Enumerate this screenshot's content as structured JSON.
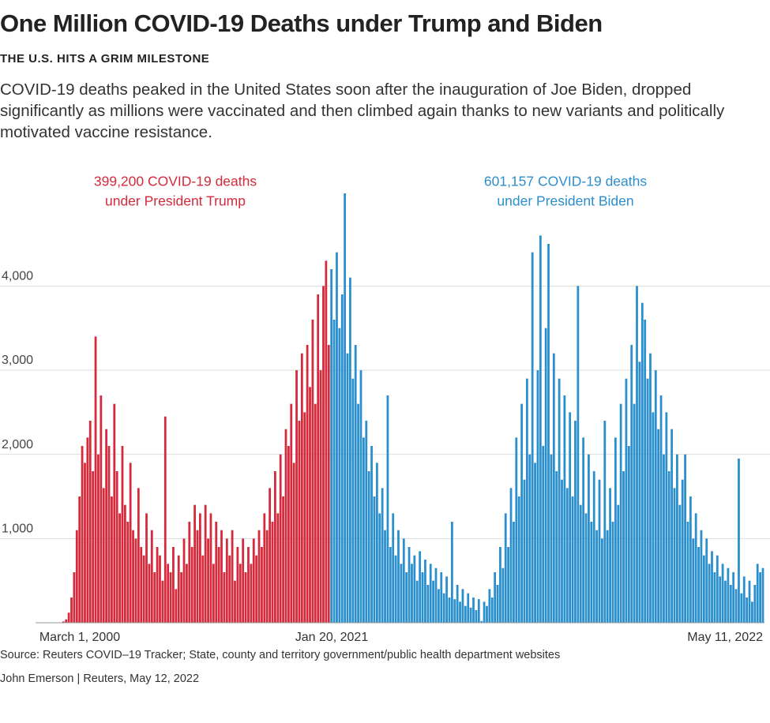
{
  "chart_data": {
    "type": "bar",
    "title": "One Million COVID-19 Deaths under Trump and Biden",
    "subtitle": "THE U.S. HITS A GRIM MILESTONE",
    "description": "COVID-19 deaths peaked in the United States soon after the inauguration of Joe Biden, dropped significantly as millions were vaccinated and then climbed again thanks to new variants and politically motivated vaccine resistance.",
    "annotations": [
      {
        "lines": [
          "399,200 COVID-19 deaths",
          "under President Trump"
        ],
        "color": "#d42a3c"
      },
      {
        "lines": [
          "601,157 COVID-19 deaths",
          "under President Biden"
        ],
        "color": "#2a8fcc"
      }
    ],
    "source": "Source: Reuters COVID–19 Tracker; State, county and territory government/public health department websites",
    "byline": "John Emerson  |  Reuters, May 12, 2022",
    "ylim": [
      0,
      5400
    ],
    "yticks": [
      {
        "value": 1000,
        "label": "1,000"
      },
      {
        "value": 2000,
        "label": "2,000"
      },
      {
        "value": 3000,
        "label": "3,000"
      },
      {
        "value": 4000,
        "label": "4,000"
      }
    ],
    "grid": true,
    "categories": [
      null,
      null,
      null,
      null,
      null,
      null,
      null,
      null,
      null,
      null,
      null,
      null,
      null,
      null,
      null,
      null,
      "March 1, 2000",
      null,
      null,
      null,
      null,
      null,
      null,
      null,
      null,
      null,
      null,
      null,
      null,
      null,
      null,
      null,
      null,
      null,
      null,
      null,
      null,
      null,
      null,
      null,
      null,
      null,
      null,
      null,
      null,
      null,
      null,
      null,
      null,
      null,
      null,
      null,
      null,
      null,
      null,
      null,
      null,
      null,
      null,
      null,
      null,
      null,
      null,
      null,
      null,
      null,
      null,
      null,
      null,
      null,
      null,
      null,
      null,
      null,
      null,
      null,
      null,
      null,
      null,
      null,
      null,
      null,
      null,
      null,
      null,
      null,
      null,
      null,
      null,
      null,
      null,
      null,
      null,
      null,
      null,
      null,
      null,
      null,
      null,
      null,
      null,
      null,
      null,
      null,
      null,
      null,
      null,
      null,
      null,
      null,
      "Jan 20, 2021",
      null,
      null,
      null,
      null,
      null,
      null,
      null,
      null,
      null,
      null,
      null,
      null,
      null,
      null,
      null,
      null,
      null,
      null,
      null,
      null,
      null,
      null,
      null,
      null,
      null,
      null,
      null,
      null,
      null,
      null,
      null,
      null,
      null,
      null,
      null,
      null,
      null,
      null,
      null,
      null,
      null,
      null,
      null,
      null,
      null,
      null,
      null,
      null,
      null,
      null,
      null,
      null,
      null,
      null,
      null,
      null,
      null,
      null,
      null,
      null,
      null,
      null,
      null,
      null,
      null,
      null,
      null,
      null,
      null,
      null,
      null,
      null,
      null,
      null,
      null,
      null,
      null,
      null,
      null,
      null,
      null,
      null,
      null,
      null,
      null,
      null,
      null,
      null,
      null,
      null,
      null,
      null,
      null,
      null,
      null,
      null,
      null,
      null,
      null,
      null,
      null,
      null,
      null,
      null,
      null,
      null,
      null,
      null,
      null,
      null,
      null,
      null,
      null,
      null,
      null,
      null,
      null,
      null,
      null,
      null,
      null,
      null,
      null,
      null,
      null,
      null,
      null,
      null,
      null,
      null,
      null,
      null,
      null,
      null,
      null,
      null,
      null,
      null,
      null,
      null,
      null,
      null,
      null,
      null,
      null,
      null,
      null,
      null,
      null,
      null,
      null,
      null,
      null,
      null,
      null,
      null,
      null,
      null,
      null,
      null,
      "May 11, 2022"
    ],
    "series": [
      {
        "color": "#d42a3c",
        "values": [
          0,
          0,
          0,
          0,
          0,
          0,
          0,
          0,
          2,
          5,
          15,
          40,
          120,
          300,
          600,
          1100,
          1500,
          2100,
          1900,
          2200,
          2400,
          1800,
          3400,
          2000,
          2700,
          1600,
          2300,
          2100,
          1500,
          2600,
          1800,
          1300,
          2100,
          1400,
          1200,
          1900,
          1100,
          1000,
          1600,
          900,
          800,
          1300,
          700,
          1100,
          600,
          900,
          800,
          500,
          2450,
          700,
          600,
          900,
          400,
          800,
          600,
          1000,
          700,
          1200,
          900,
          1400,
          1100,
          1300,
          800,
          1400,
          1000,
          1300,
          700,
          1200,
          900,
          1100,
          600,
          1000,
          800,
          1100,
          500,
          900,
          700,
          1000,
          600,
          900,
          700,
          1000,
          800,
          1100,
          900,
          1300,
          1100,
          1600,
          1200,
          1800,
          1300,
          2000,
          1500,
          2300,
          2100,
          2600,
          1900,
          3000,
          2400,
          3200,
          2500,
          3300,
          2800,
          3600,
          2600,
          3900,
          3000,
          4000,
          4300,
          3300,
          null,
          null,
          null,
          null,
          null,
          null,
          null,
          null,
          null,
          null,
          null,
          null,
          null,
          null,
          null,
          null,
          null,
          null,
          null,
          null,
          null,
          null,
          null,
          null,
          null,
          null,
          null,
          null,
          null,
          null,
          null,
          null,
          null,
          null,
          null,
          null,
          null,
          null,
          null,
          null,
          null,
          null,
          null,
          null,
          null,
          null,
          null,
          null,
          null,
          null,
          null,
          null,
          null,
          null,
          null,
          null,
          null,
          null,
          null,
          null,
          null,
          null,
          null,
          null,
          null,
          null,
          null,
          null,
          null,
          null,
          null,
          null,
          null,
          null,
          null,
          null,
          null,
          null,
          null,
          null,
          null,
          null,
          null,
          null,
          null,
          null,
          null,
          null,
          null,
          null,
          null,
          null,
          null,
          null,
          null,
          null,
          null,
          null,
          null,
          null,
          null,
          null,
          null,
          null,
          null,
          null,
          null,
          null,
          null,
          null,
          null,
          null,
          null,
          null,
          null,
          null,
          null,
          null,
          null,
          null,
          null,
          null,
          null,
          null,
          null,
          null,
          null,
          null,
          null,
          null,
          null,
          null,
          null,
          null,
          null,
          null,
          null,
          null,
          null,
          null,
          null,
          null,
          null,
          null,
          null,
          null,
          null,
          null,
          null,
          null,
          null,
          null,
          null,
          null,
          null,
          null,
          null,
          null,
          null,
          null,
          null,
          null
        ]
      },
      {
        "color": "#2a8fcc",
        "values": [
          null,
          null,
          null,
          null,
          null,
          null,
          null,
          null,
          null,
          null,
          null,
          null,
          null,
          null,
          null,
          null,
          null,
          null,
          null,
          null,
          null,
          null,
          null,
          null,
          null,
          null,
          null,
          null,
          null,
          null,
          null,
          null,
          null,
          null,
          null,
          null,
          null,
          null,
          null,
          null,
          null,
          null,
          null,
          null,
          null,
          null,
          null,
          null,
          null,
          null,
          null,
          null,
          null,
          null,
          null,
          null,
          null,
          null,
          null,
          null,
          null,
          null,
          null,
          null,
          null,
          null,
          null,
          null,
          null,
          null,
          null,
          null,
          null,
          null,
          null,
          null,
          null,
          null,
          null,
          null,
          null,
          null,
          null,
          null,
          null,
          null,
          null,
          null,
          null,
          null,
          null,
          null,
          null,
          null,
          null,
          null,
          null,
          null,
          null,
          null,
          null,
          null,
          null,
          null,
          null,
          null,
          null,
          null,
          null,
          null,
          4200,
          3600,
          4400,
          3500,
          3900,
          5100,
          3200,
          4100,
          2900,
          3300,
          2600,
          3000,
          2200,
          2400,
          1800,
          2100,
          1500,
          1900,
          1300,
          1600,
          1100,
          2700,
          900,
          1300,
          800,
          1100,
          700,
          1000,
          600,
          900,
          700,
          800,
          500,
          850,
          600,
          750,
          450,
          700,
          500,
          650,
          400,
          600,
          350,
          550,
          300,
          1200,
          280,
          450,
          250,
          400,
          200,
          350,
          180,
          300,
          150,
          280,
          20,
          250,
          200,
          400,
          300,
          600,
          450,
          900,
          650,
          1300,
          900,
          1600,
          1200,
          2200,
          1500,
          2600,
          1700,
          2900,
          2000,
          4400,
          1900,
          3000,
          4600,
          2100,
          3500,
          4500,
          2000,
          3200,
          1800,
          2900,
          1700,
          2700,
          1600,
          2500,
          1500,
          2400,
          4000,
          1400,
          2200,
          1300,
          2000,
          1200,
          1800,
          1100,
          1700,
          1000,
          2400,
          1100,
          1600,
          1200,
          2200,
          1400,
          2600,
          1800,
          2900,
          2100,
          3300,
          2600,
          4000,
          3100,
          3800,
          3600,
          2900,
          3200,
          2500,
          3000,
          2300,
          2700,
          2000,
          2500,
          1800,
          2300,
          1600,
          2000,
          1400,
          1700,
          2000,
          1200,
          1500,
          1000,
          1300,
          900,
          1100,
          800,
          1000,
          700,
          850,
          600,
          800,
          550,
          700,
          500,
          650,
          450,
          600,
          400,
          1950,
          350,
          550,
          300,
          500,
          250,
          450,
          700,
          600,
          650
        ]
      }
    ]
  }
}
